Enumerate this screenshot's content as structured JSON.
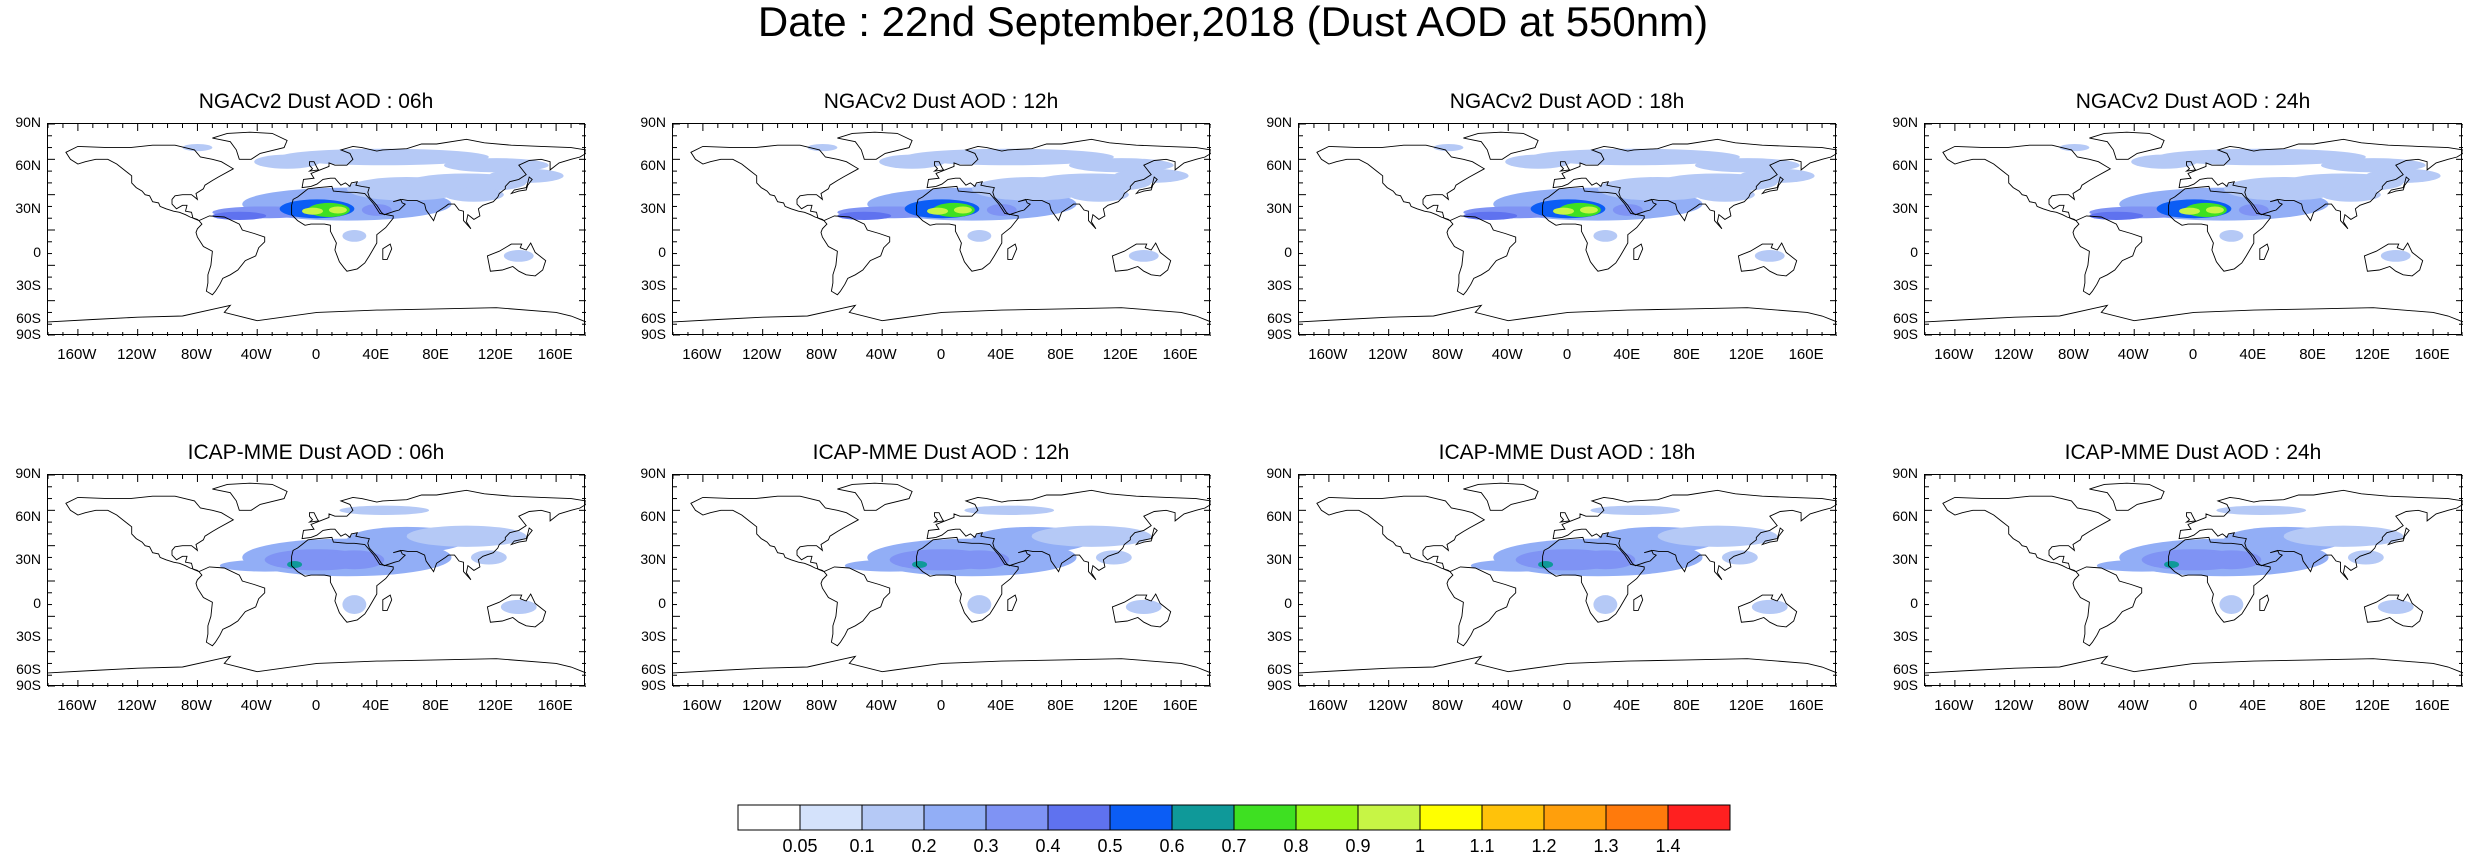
{
  "title": "Date : 22nd September,2018 (Dust AOD at 550nm)",
  "panels": [
    {
      "title": "NGACv2 Dust AOD : 06h",
      "model": "ngac"
    },
    {
      "title": "NGACv2 Dust AOD : 12h",
      "model": "ngac"
    },
    {
      "title": "NGACv2 Dust AOD : 18h",
      "model": "ngac"
    },
    {
      "title": "NGACv2 Dust AOD : 24h",
      "model": "ngac"
    },
    {
      "title": "ICAP-MME Dust AOD : 06h",
      "model": "icap"
    },
    {
      "title": "ICAP-MME Dust AOD : 12h",
      "model": "icap"
    },
    {
      "title": "ICAP-MME Dust AOD : 18h",
      "model": "icap"
    },
    {
      "title": "ICAP-MME Dust AOD : 24h",
      "model": "icap"
    }
  ],
  "lat_labels": [
    "90N",
    "60N",
    "30N",
    "0",
    "30S",
    "60S",
    "90S"
  ],
  "lon_labels": [
    "160W",
    "120W",
    "80W",
    "40W",
    "0",
    "40E",
    "80E",
    "120E",
    "160E"
  ],
  "colorbar": {
    "labels": [
      "0.05",
      "0.1",
      "0.2",
      "0.3",
      "0.4",
      "0.5",
      "0.6",
      "0.7",
      "0.8",
      "0.9",
      "1",
      "1.1",
      "1.2",
      "1.3",
      "1.4"
    ],
    "colors": [
      "#ffffff",
      "#d4e2fb",
      "#b5c9f6",
      "#92aef6",
      "#7f93f4",
      "#5f72ef",
      "#0b5df5",
      "#0f9999",
      "#3ee022",
      "#96f416",
      "#c7f545",
      "#ffff00",
      "#ffc20a",
      "#ff9f0c",
      "#ff7a0c",
      "#ff2020"
    ]
  },
  "chart_data": {
    "type": "heatmap",
    "title": "Date : 22nd September,2018 (Dust AOD at 550nm)",
    "variable": "Dust AOD at 550nm",
    "date": "22nd September,2018",
    "x_range_lon": [
      -180,
      180
    ],
    "y_range_lat": [
      -90,
      90
    ],
    "colorbar_levels": [
      0.05,
      0.1,
      0.2,
      0.3,
      0.4,
      0.5,
      0.6,
      0.7,
      0.8,
      0.9,
      1,
      1.1,
      1.2,
      1.3,
      1.4
    ],
    "fields": [
      {
        "model": "NGACv2",
        "lead": "06h",
        "max_aod_approx": 0.9
      },
      {
        "model": "NGACv2",
        "lead": "12h",
        "max_aod_approx": 1.0
      },
      {
        "model": "NGACv2",
        "lead": "18h",
        "max_aod_approx": 1.0
      },
      {
        "model": "NGACv2",
        "lead": "24h",
        "max_aod_approx": 1.0
      },
      {
        "model": "ICAP-MME",
        "lead": "06h",
        "max_aod_approx": 0.7
      },
      {
        "model": "ICAP-MME",
        "lead": "12h",
        "max_aod_approx": 0.6
      },
      {
        "model": "ICAP-MME",
        "lead": "18h",
        "max_aod_approx": 0.5
      },
      {
        "model": "ICAP-MME",
        "lead": "24h",
        "max_aod_approx": 0.5
      }
    ]
  }
}
